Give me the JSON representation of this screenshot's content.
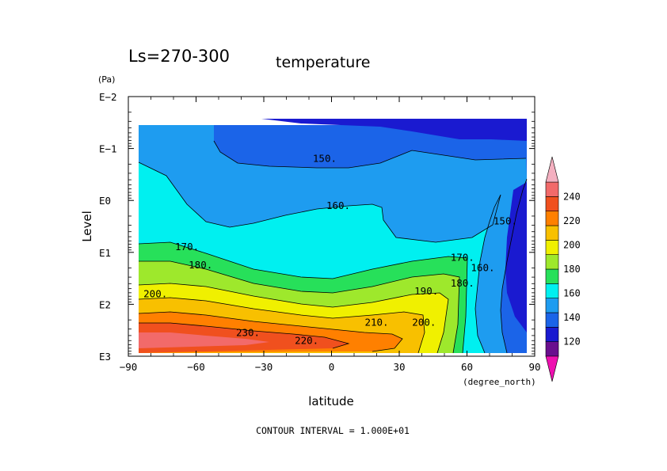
{
  "chart_data": {
    "type": "contour",
    "title": "Ls=270-300",
    "subtitle": "temperature",
    "xlabel": "latitude",
    "x_units": "(degree_north)",
    "ylabel": "Level",
    "y_units": "(Pa)",
    "xlim": [
      -90,
      90
    ],
    "x_ticks": [
      "-90",
      "-60",
      "-30",
      "0",
      "30",
      "60",
      "90"
    ],
    "y_scale": "log",
    "y_ticks": [
      "E-2",
      "E-1",
      "E0",
      "E1",
      "E2",
      "E3"
    ],
    "y_tick_exponents": [
      -2,
      -1,
      0,
      1,
      2,
      3
    ],
    "contour_interval_text": "CONTOUR INTERVAL = 1.000E+01",
    "contour_labels": [
      {
        "text": "150.",
        "lat": -3,
        "logp": -0.8
      },
      {
        "text": "160.",
        "lat": 3,
        "logp": 0.1
      },
      {
        "text": "170.",
        "lat": -64,
        "logp": 0.9
      },
      {
        "text": "180.",
        "lat": -58,
        "logp": 1.25
      },
      {
        "text": "200.",
        "lat": -78,
        "logp": 1.8
      },
      {
        "text": "190.",
        "lat": 42,
        "logp": 1.75
      },
      {
        "text": "210.",
        "lat": 20,
        "logp": 2.35
      },
      {
        "text": "230.",
        "lat": -37,
        "logp": 2.55
      },
      {
        "text": "220.",
        "lat": -11,
        "logp": 2.7
      },
      {
        "text": "200.",
        "lat": 41,
        "logp": 2.35
      },
      {
        "text": "170.",
        "lat": 58,
        "logp": 1.1
      },
      {
        "text": "180.",
        "lat": 58,
        "logp": 1.6
      },
      {
        "text": "160.",
        "lat": 67,
        "logp": 1.3
      },
      {
        "text": "150.",
        "lat": 77,
        "logp": 0.4
      }
    ],
    "colorbar": {
      "levels": [
        120,
        140,
        160,
        180,
        200,
        220,
        240
      ],
      "level_labels": [
        "120",
        "140",
        "160",
        "180",
        "200",
        "220",
        "240"
      ],
      "bands": [
        "#6a0f8e",
        "#1a1ad0",
        "#1b64e8",
        "#1e9cf0",
        "#00f0f0",
        "#27e05a",
        "#9ee82c",
        "#f0f000",
        "#f8c000",
        "#ff8000",
        "#f0501e",
        "#f26a6a"
      ],
      "under_color": "#ee10b0",
      "over_color": "#f4b0c0"
    }
  }
}
